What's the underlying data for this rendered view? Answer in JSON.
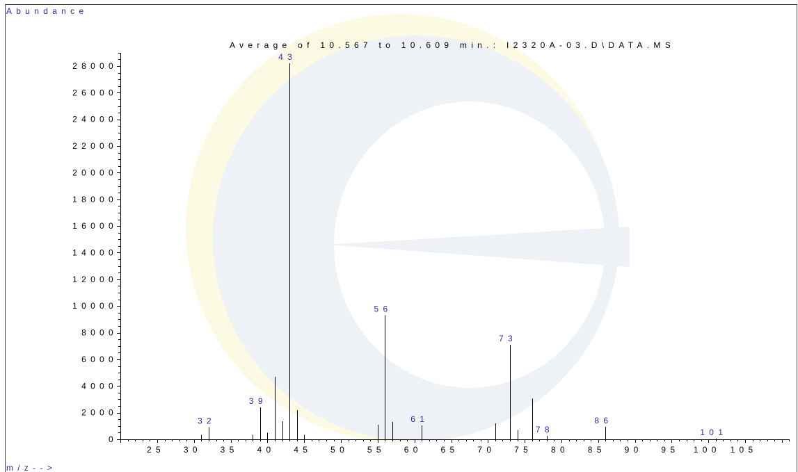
{
  "colors": {
    "annotation_blue": "#2a2ab4",
    "axis": "#000000",
    "peak": "#000000",
    "frame": "#444444",
    "watermark_grey": "#eef1f5",
    "watermark_yellow": "#fcfae2"
  },
  "chart_data": {
    "type": "bar",
    "title": "Average of 10.567 to 10.609 min.: I2320A-03.D\\DATA.MS",
    "xlabel": "m/z-->",
    "ylabel": "Abundance",
    "xlim": [
      20,
      111
    ],
    "ylim": [
      0,
      29000
    ],
    "grid": false,
    "x_ticks": [
      25,
      30,
      35,
      40,
      45,
      50,
      55,
      60,
      65,
      70,
      75,
      80,
      85,
      90,
      95,
      100,
      105
    ],
    "y_ticks": [
      0,
      2000,
      4000,
      6000,
      8000,
      10000,
      12000,
      14000,
      16000,
      18000,
      20000,
      22000,
      24000,
      26000,
      28000
    ],
    "x": [
      31,
      32,
      38,
      39,
      40,
      41,
      42,
      43,
      44,
      45,
      55,
      56,
      57,
      61,
      71,
      73,
      74,
      76,
      78,
      86,
      101
    ],
    "y": [
      350,
      900,
      350,
      2400,
      500,
      4700,
      1350,
      28200,
      2200,
      350,
      1100,
      9300,
      1300,
      1050,
      1200,
      7100,
      700,
      3050,
      250,
      950,
      50
    ],
    "peak_labels": [
      32,
      39,
      43,
      56,
      61,
      73,
      78,
      86,
      101
    ]
  }
}
